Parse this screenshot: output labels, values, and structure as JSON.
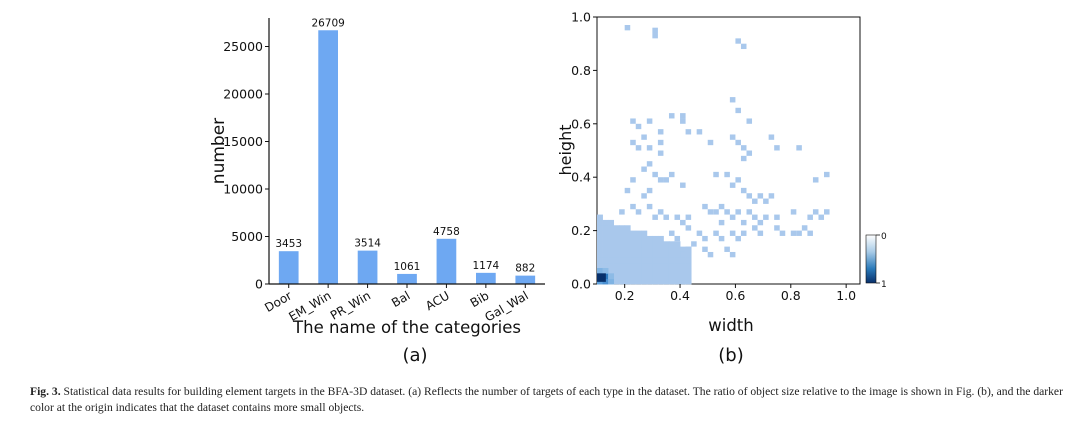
{
  "chart_data": [
    {
      "type": "bar",
      "title": "",
      "xlabel": "The name of the categories",
      "ylabel": "number",
      "categories": [
        "Door",
        "EM_Win",
        "PR_Win",
        "Bal",
        "ACU",
        "Bib",
        "Gal_Wal"
      ],
      "values": [
        3453,
        26709,
        3514,
        1061,
        4758,
        1174,
        882
      ],
      "data_labels": [
        "3453",
        "26709",
        "3514",
        "1061",
        "4758",
        "1174",
        "882"
      ],
      "yticks": [
        0,
        5000,
        10000,
        15000,
        20000,
        25000
      ],
      "ytick_labels": [
        "0",
        "5000",
        "10000",
        "15000",
        "20000",
        "25000"
      ],
      "ylim": [
        0,
        28000
      ],
      "color": "#6ea8f2",
      "panel_label": "(a)"
    },
    {
      "type": "heatmap",
      "title": "",
      "xlabel": "width",
      "ylabel": "height",
      "xlim": [
        0.1,
        1.05
      ],
      "ylim": [
        0.0,
        1.0
      ],
      "xticks": [
        0.2,
        0.4,
        0.6,
        0.8,
        1.0
      ],
      "xtick_labels": [
        "0.2",
        "0.4",
        "0.6",
        "0.8",
        "1.0"
      ],
      "yticks": [
        0.0,
        0.2,
        0.4,
        0.6,
        0.8,
        1.0
      ],
      "ytick_labels": [
        "0.0",
        "0.2",
        "0.4",
        "0.6",
        "0.8",
        "1.0"
      ],
      "bin_size": 0.02,
      "colorbar": {
        "min_label": "1",
        "max_label": "0",
        "low_color": "#08306b",
        "high_color": "#ffffff"
      },
      "sparse_cells": [
        [
          0.21,
          0.96
        ],
        [
          0.31,
          0.95
        ],
        [
          0.31,
          0.93
        ],
        [
          0.61,
          0.91
        ],
        [
          0.63,
          0.89
        ],
        [
          0.23,
          0.61
        ],
        [
          0.29,
          0.61
        ],
        [
          0.33,
          0.57
        ],
        [
          0.37,
          0.63
        ],
        [
          0.41,
          0.63
        ],
        [
          0.41,
          0.61
        ],
        [
          0.43,
          0.57
        ],
        [
          0.25,
          0.59
        ],
        [
          0.23,
          0.53
        ],
        [
          0.25,
          0.51
        ],
        [
          0.27,
          0.55
        ],
        [
          0.29,
          0.51
        ],
        [
          0.33,
          0.53
        ],
        [
          0.33,
          0.49
        ],
        [
          0.47,
          0.57
        ],
        [
          0.51,
          0.53
        ],
        [
          0.59,
          0.69
        ],
        [
          0.61,
          0.65
        ],
        [
          0.65,
          0.61
        ],
        [
          0.59,
          0.55
        ],
        [
          0.61,
          0.53
        ],
        [
          0.63,
          0.51
        ],
        [
          0.65,
          0.49
        ],
        [
          0.63,
          0.47
        ],
        [
          0.73,
          0.55
        ],
        [
          0.75,
          0.51
        ],
        [
          0.83,
          0.51
        ],
        [
          0.27,
          0.43
        ],
        [
          0.29,
          0.45
        ],
        [
          0.31,
          0.41
        ],
        [
          0.33,
          0.39
        ],
        [
          0.35,
          0.39
        ],
        [
          0.37,
          0.41
        ],
        [
          0.41,
          0.37
        ],
        [
          0.23,
          0.39
        ],
        [
          0.21,
          0.35
        ],
        [
          0.27,
          0.33
        ],
        [
          0.29,
          0.35
        ],
        [
          0.53,
          0.41
        ],
        [
          0.57,
          0.41
        ],
        [
          0.59,
          0.37
        ],
        [
          0.61,
          0.39
        ],
        [
          0.63,
          0.35
        ],
        [
          0.65,
          0.33
        ],
        [
          0.67,
          0.31
        ],
        [
          0.69,
          0.33
        ],
        [
          0.71,
          0.31
        ],
        [
          0.73,
          0.33
        ],
        [
          0.93,
          0.41
        ],
        [
          0.89,
          0.39
        ],
        [
          0.19,
          0.27
        ],
        [
          0.23,
          0.29
        ],
        [
          0.25,
          0.27
        ],
        [
          0.29,
          0.29
        ],
        [
          0.31,
          0.25
        ],
        [
          0.33,
          0.27
        ],
        [
          0.35,
          0.25
        ],
        [
          0.39,
          0.25
        ],
        [
          0.41,
          0.23
        ],
        [
          0.43,
          0.25
        ],
        [
          0.49,
          0.29
        ],
        [
          0.51,
          0.27
        ],
        [
          0.53,
          0.27
        ],
        [
          0.55,
          0.29
        ],
        [
          0.55,
          0.23
        ],
        [
          0.57,
          0.27
        ],
        [
          0.59,
          0.25
        ],
        [
          0.61,
          0.27
        ],
        [
          0.63,
          0.23
        ],
        [
          0.65,
          0.27
        ],
        [
          0.67,
          0.25
        ],
        [
          0.69,
          0.23
        ],
        [
          0.71,
          0.25
        ],
        [
          0.75,
          0.25
        ],
        [
          0.81,
          0.27
        ],
        [
          0.87,
          0.25
        ],
        [
          0.89,
          0.27
        ],
        [
          0.93,
          0.27
        ],
        [
          0.91,
          0.25
        ],
        [
          0.85,
          0.21
        ],
        [
          0.87,
          0.19
        ],
        [
          0.83,
          0.19
        ],
        [
          0.81,
          0.19
        ],
        [
          0.47,
          0.19
        ],
        [
          0.49,
          0.17
        ],
        [
          0.53,
          0.19
        ],
        [
          0.55,
          0.17
        ],
        [
          0.59,
          0.19
        ],
        [
          0.61,
          0.17
        ],
        [
          0.63,
          0.19
        ],
        [
          0.67,
          0.21
        ],
        [
          0.69,
          0.19
        ],
        [
          0.75,
          0.21
        ],
        [
          0.77,
          0.19
        ],
        [
          0.45,
          0.15
        ],
        [
          0.49,
          0.13
        ],
        [
          0.51,
          0.11
        ],
        [
          0.57,
          0.13
        ],
        [
          0.59,
          0.11
        ],
        [
          0.41,
          0.11
        ],
        [
          0.43,
          0.13
        ],
        [
          0.37,
          0.19
        ],
        [
          0.39,
          0.17
        ],
        [
          0.43,
          0.21
        ]
      ]
    }
  ],
  "panel_labels": {
    "a": "(a)",
    "b": "(b)"
  },
  "caption": {
    "label": "Fig. 3.",
    "text": " Statistical data results for building element targets in the BFA-3D dataset. (a) Reflects the number of targets of each type in the dataset. The ratio of object size relative to the image is shown in Fig. (b), and the darker color at the origin indicates that the dataset contains more small objects."
  }
}
